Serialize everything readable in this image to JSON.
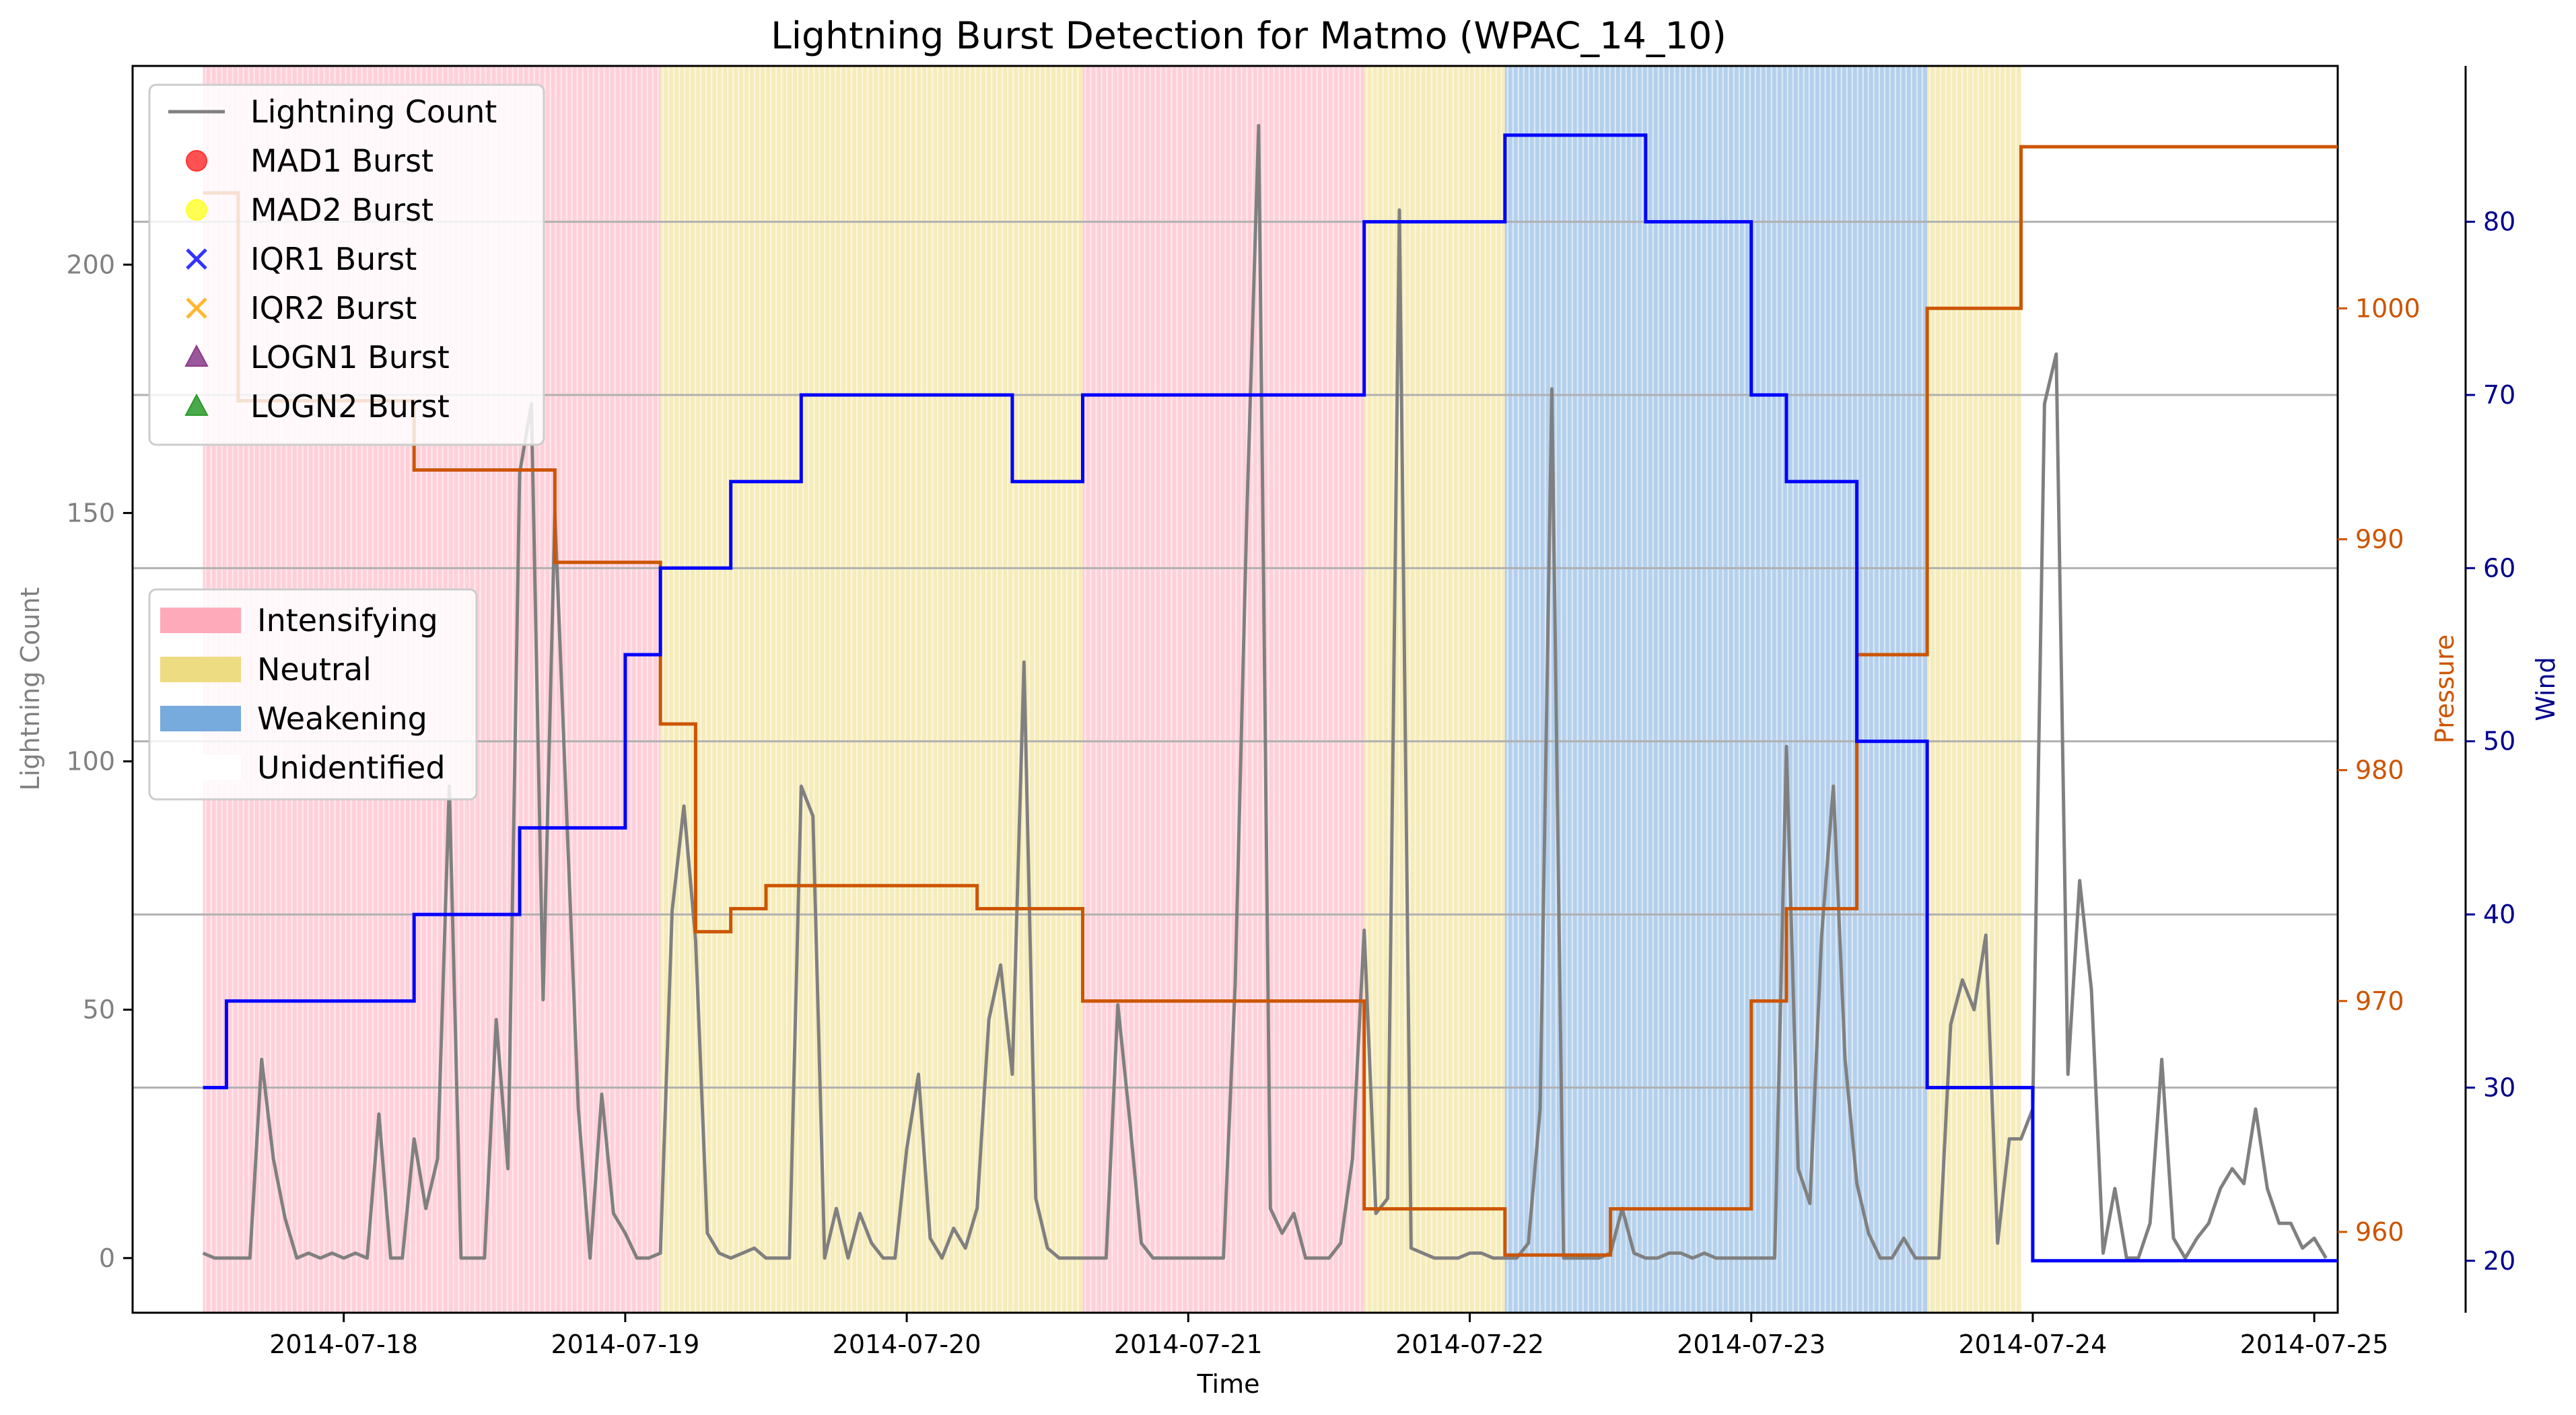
{
  "chart_data": {
    "type": "line",
    "title": "Lightning Burst Detection for Matmo (WPAC_14_10)",
    "xlabel": "Time",
    "ylabel_left": "Lightning Count",
    "ylabel_pressure": "Pressure",
    "ylabel_wind": "Wind",
    "x_range": [
      "2014-07-17 06:00",
      "2014-07-25 02:00"
    ],
    "ylim_count": [
      -11,
      240
    ],
    "ylim_pressure": [
      956.5,
      1010.5
    ],
    "ylim_wind": [
      17,
      89
    ],
    "x_ticks": [
      "2014-07-18",
      "2014-07-19",
      "2014-07-20",
      "2014-07-21",
      "2014-07-22",
      "2014-07-23",
      "2014-07-24",
      "2014-07-25"
    ],
    "y_ticks_count": [
      0,
      50,
      100,
      150,
      200
    ],
    "y_ticks_pressure": [
      960,
      970,
      980,
      990,
      1000
    ],
    "y_ticks_wind": [
      20,
      30,
      40,
      50,
      60,
      70,
      80
    ],
    "grid_lines_wind": [
      30,
      40,
      50,
      60,
      70,
      80
    ],
    "colors": {
      "lightning": "#808080",
      "pressure": "#cc5500",
      "wind": "#0000ff",
      "wind_axis": "#00008b",
      "intensifying": "#ffaabb",
      "neutral": "#eedc82",
      "weakening": "#77aadd"
    },
    "phases": [
      {
        "label": "Intensifying",
        "start": "2014-07-17 12:00",
        "end": "2014-07-19 03:00"
      },
      {
        "label": "Neutral",
        "start": "2014-07-19 03:00",
        "end": "2014-07-20 15:00"
      },
      {
        "label": "Intensifying",
        "start": "2014-07-20 15:00",
        "end": "2014-07-21 15:00"
      },
      {
        "label": "Neutral",
        "start": "2014-07-21 15:00",
        "end": "2014-07-22 03:00"
      },
      {
        "label": "Weakening",
        "start": "2014-07-22 03:00",
        "end": "2014-07-23 15:00"
      },
      {
        "label": "Neutral",
        "start": "2014-07-23 15:00",
        "end": "2014-07-23 23:00"
      }
    ],
    "series": [
      {
        "name": "Lightning Count",
        "points": [
          [
            "2014-07-17 12:00",
            1
          ],
          [
            "2014-07-17 13:00",
            0
          ],
          [
            "2014-07-17 14:00",
            0
          ],
          [
            "2014-07-17 15:00",
            0
          ],
          [
            "2014-07-17 16:00",
            0
          ],
          [
            "2014-07-17 17:00",
            40
          ],
          [
            "2014-07-17 18:00",
            20
          ],
          [
            "2014-07-17 19:00",
            8
          ],
          [
            "2014-07-17 20:00",
            0
          ],
          [
            "2014-07-17 21:00",
            1
          ],
          [
            "2014-07-17 22:00",
            0
          ],
          [
            "2014-07-17 23:00",
            1
          ],
          [
            "2014-07-18 00:00",
            0
          ],
          [
            "2014-07-18 01:00",
            1
          ],
          [
            "2014-07-18 02:00",
            0
          ],
          [
            "2014-07-18 03:00",
            29
          ],
          [
            "2014-07-18 04:00",
            0
          ],
          [
            "2014-07-18 05:00",
            0
          ],
          [
            "2014-07-18 06:00",
            24
          ],
          [
            "2014-07-18 07:00",
            10
          ],
          [
            "2014-07-18 08:00",
            20
          ],
          [
            "2014-07-18 09:00",
            95
          ],
          [
            "2014-07-18 10:00",
            0
          ],
          [
            "2014-07-18 11:00",
            0
          ],
          [
            "2014-07-18 12:00",
            0
          ],
          [
            "2014-07-18 13:00",
            48
          ],
          [
            "2014-07-18 14:00",
            18
          ],
          [
            "2014-07-18 15:00",
            158
          ],
          [
            "2014-07-18 16:00",
            172
          ],
          [
            "2014-07-18 17:00",
            52
          ],
          [
            "2014-07-18 18:00",
            150
          ],
          [
            "2014-07-18 19:00",
            90
          ],
          [
            "2014-07-18 20:00",
            30
          ],
          [
            "2014-07-18 21:00",
            0
          ],
          [
            "2014-07-18 22:00",
            33
          ],
          [
            "2014-07-18 23:00",
            9
          ],
          [
            "2014-07-19 00:00",
            5
          ],
          [
            "2014-07-19 01:00",
            0
          ],
          [
            "2014-07-19 02:00",
            0
          ],
          [
            "2014-07-19 03:00",
            1
          ],
          [
            "2014-07-19 04:00",
            70
          ],
          [
            "2014-07-19 05:00",
            91
          ],
          [
            "2014-07-19 06:00",
            64
          ],
          [
            "2014-07-19 07:00",
            5
          ],
          [
            "2014-07-19 08:00",
            1
          ],
          [
            "2014-07-19 09:00",
            0
          ],
          [
            "2014-07-19 10:00",
            1
          ],
          [
            "2014-07-19 11:00",
            2
          ],
          [
            "2014-07-19 12:00",
            0
          ],
          [
            "2014-07-19 13:00",
            0
          ],
          [
            "2014-07-19 14:00",
            0
          ],
          [
            "2014-07-19 15:00",
            95
          ],
          [
            "2014-07-19 16:00",
            89
          ],
          [
            "2014-07-19 17:00",
            0
          ],
          [
            "2014-07-19 18:00",
            10
          ],
          [
            "2014-07-19 19:00",
            0
          ],
          [
            "2014-07-19 20:00",
            9
          ],
          [
            "2014-07-19 21:00",
            3
          ],
          [
            "2014-07-19 22:00",
            0
          ],
          [
            "2014-07-19 23:00",
            0
          ],
          [
            "2014-07-20 00:00",
            22
          ],
          [
            "2014-07-20 01:00",
            37
          ],
          [
            "2014-07-20 02:00",
            4
          ],
          [
            "2014-07-20 03:00",
            0
          ],
          [
            "2014-07-20 04:00",
            6
          ],
          [
            "2014-07-20 05:00",
            2
          ],
          [
            "2014-07-20 06:00",
            10
          ],
          [
            "2014-07-20 07:00",
            48
          ],
          [
            "2014-07-20 08:00",
            59
          ],
          [
            "2014-07-20 09:00",
            37
          ],
          [
            "2014-07-20 10:00",
            120
          ],
          [
            "2014-07-20 11:00",
            12
          ],
          [
            "2014-07-20 12:00",
            2
          ],
          [
            "2014-07-20 13:00",
            0
          ],
          [
            "2014-07-20 14:00",
            0
          ],
          [
            "2014-07-20 15:00",
            0
          ],
          [
            "2014-07-20 16:00",
            0
          ],
          [
            "2014-07-20 17:00",
            0
          ],
          [
            "2014-07-20 18:00",
            51
          ],
          [
            "2014-07-20 19:00",
            28
          ],
          [
            "2014-07-20 20:00",
            3
          ],
          [
            "2014-07-20 21:00",
            0
          ],
          [
            "2014-07-20 22:00",
            0
          ],
          [
            "2014-07-20 23:00",
            0
          ],
          [
            "2014-07-21 00:00",
            0
          ],
          [
            "2014-07-21 01:00",
            0
          ],
          [
            "2014-07-21 02:00",
            0
          ],
          [
            "2014-07-21 03:00",
            0
          ],
          [
            "2014-07-21 04:00",
            55
          ],
          [
            "2014-07-21 05:00",
            150
          ],
          [
            "2014-07-21 06:00",
            228
          ],
          [
            "2014-07-21 07:00",
            10
          ],
          [
            "2014-07-21 08:00",
            5
          ],
          [
            "2014-07-21 09:00",
            9
          ],
          [
            "2014-07-21 10:00",
            0
          ],
          [
            "2014-07-21 11:00",
            0
          ],
          [
            "2014-07-21 12:00",
            0
          ],
          [
            "2014-07-21 13:00",
            3
          ],
          [
            "2014-07-21 14:00",
            20
          ],
          [
            "2014-07-21 15:00",
            66
          ],
          [
            "2014-07-21 16:00",
            9
          ],
          [
            "2014-07-21 17:00",
            12
          ],
          [
            "2014-07-21 18:00",
            211
          ],
          [
            "2014-07-21 19:00",
            2
          ],
          [
            "2014-07-21 20:00",
            1
          ],
          [
            "2014-07-21 21:00",
            0
          ],
          [
            "2014-07-21 22:00",
            0
          ],
          [
            "2014-07-21 23:00",
            0
          ],
          [
            "2014-07-22 00:00",
            1
          ],
          [
            "2014-07-22 01:00",
            1
          ],
          [
            "2014-07-22 02:00",
            0
          ],
          [
            "2014-07-22 03:00",
            0
          ],
          [
            "2014-07-22 04:00",
            0
          ],
          [
            "2014-07-22 05:00",
            3
          ],
          [
            "2014-07-22 06:00",
            30
          ],
          [
            "2014-07-22 07:00",
            175
          ],
          [
            "2014-07-22 08:00",
            0
          ],
          [
            "2014-07-22 09:00",
            0
          ],
          [
            "2014-07-22 10:00",
            0
          ],
          [
            "2014-07-22 11:00",
            0
          ],
          [
            "2014-07-22 12:00",
            1
          ],
          [
            "2014-07-22 13:00",
            10
          ],
          [
            "2014-07-22 14:00",
            1
          ],
          [
            "2014-07-22 15:00",
            0
          ],
          [
            "2014-07-22 16:00",
            0
          ],
          [
            "2014-07-22 17:00",
            1
          ],
          [
            "2014-07-22 18:00",
            1
          ],
          [
            "2014-07-22 19:00",
            0
          ],
          [
            "2014-07-22 20:00",
            1
          ],
          [
            "2014-07-22 21:00",
            0
          ],
          [
            "2014-07-22 22:00",
            0
          ],
          [
            "2014-07-22 23:00",
            0
          ],
          [
            "2014-07-23 00:00",
            0
          ],
          [
            "2014-07-23 01:00",
            0
          ],
          [
            "2014-07-23 02:00",
            0
          ],
          [
            "2014-07-23 03:00",
            103
          ],
          [
            "2014-07-23 04:00",
            18
          ],
          [
            "2014-07-23 05:00",
            11
          ],
          [
            "2014-07-23 06:00",
            65
          ],
          [
            "2014-07-23 07:00",
            95
          ],
          [
            "2014-07-23 08:00",
            40
          ],
          [
            "2014-07-23 09:00",
            15
          ],
          [
            "2014-07-23 10:00",
            5
          ],
          [
            "2014-07-23 11:00",
            0
          ],
          [
            "2014-07-23 12:00",
            0
          ],
          [
            "2014-07-23 13:00",
            4
          ],
          [
            "2014-07-23 14:00",
            0
          ],
          [
            "2014-07-23 15:00",
            0
          ],
          [
            "2014-07-23 16:00",
            0
          ],
          [
            "2014-07-23 17:00",
            47
          ],
          [
            "2014-07-23 18:00",
            56
          ],
          [
            "2014-07-23 19:00",
            50
          ],
          [
            "2014-07-23 20:00",
            65
          ],
          [
            "2014-07-23 21:00",
            3
          ],
          [
            "2014-07-23 22:00",
            24
          ],
          [
            "2014-07-23 23:00",
            24
          ],
          [
            "2014-07-24 00:00",
            30
          ],
          [
            "2014-07-24 01:00",
            172
          ],
          [
            "2014-07-24 02:00",
            182
          ],
          [
            "2014-07-24 03:00",
            37
          ],
          [
            "2014-07-24 04:00",
            76
          ],
          [
            "2014-07-24 05:00",
            54
          ],
          [
            "2014-07-24 06:00",
            1
          ],
          [
            "2014-07-24 07:00",
            14
          ],
          [
            "2014-07-24 08:00",
            0
          ],
          [
            "2014-07-24 09:00",
            0
          ],
          [
            "2014-07-24 10:00",
            7
          ],
          [
            "2014-07-24 11:00",
            40
          ],
          [
            "2014-07-24 12:00",
            4
          ],
          [
            "2014-07-24 13:00",
            0
          ],
          [
            "2014-07-24 14:00",
            4
          ],
          [
            "2014-07-24 15:00",
            7
          ],
          [
            "2014-07-24 16:00",
            14
          ],
          [
            "2014-07-24 17:00",
            18
          ],
          [
            "2014-07-24 18:00",
            15
          ],
          [
            "2014-07-24 19:00",
            30
          ],
          [
            "2014-07-24 20:00",
            14
          ],
          [
            "2014-07-24 21:00",
            7
          ],
          [
            "2014-07-24 22:00",
            7
          ],
          [
            "2014-07-24 23:00",
            2
          ],
          [
            "2014-07-25 00:00",
            4
          ],
          [
            "2014-07-25 01:00",
            0
          ]
        ]
      },
      {
        "name": "Pressure",
        "axis": "pressure",
        "steps": [
          [
            "2014-07-17 12:00",
            1005
          ],
          [
            "2014-07-17 15:00",
            996
          ],
          [
            "2014-07-18 06:00",
            993
          ],
          [
            "2014-07-18 18:00",
            989
          ],
          [
            "2014-07-19 03:00",
            982
          ],
          [
            "2014-07-19 06:00",
            973
          ],
          [
            "2014-07-19 09:00",
            974
          ],
          [
            "2014-07-19 12:00",
            975
          ],
          [
            "2014-07-20 06:00",
            974
          ],
          [
            "2014-07-20 15:00",
            970
          ],
          [
            "2014-07-21 15:00",
            961
          ],
          [
            "2014-07-22 03:00",
            959
          ],
          [
            "2014-07-22 12:00",
            961
          ],
          [
            "2014-07-23 00:00",
            970
          ],
          [
            "2014-07-23 03:00",
            974
          ],
          [
            "2014-07-23 09:00",
            985
          ],
          [
            "2014-07-23 15:00",
            1000
          ],
          [
            "2014-07-23 23:00",
            1007
          ],
          [
            "2014-07-25 02:00",
            1007
          ]
        ]
      },
      {
        "name": "Wind",
        "axis": "wind",
        "steps": [
          [
            "2014-07-17 12:00",
            30
          ],
          [
            "2014-07-17 14:00",
            35
          ],
          [
            "2014-07-18 06:00",
            40
          ],
          [
            "2014-07-18 15:00",
            45
          ],
          [
            "2014-07-19 00:00",
            55
          ],
          [
            "2014-07-19 03:00",
            60
          ],
          [
            "2014-07-19 09:00",
            65
          ],
          [
            "2014-07-19 15:00",
            70
          ],
          [
            "2014-07-20 09:00",
            65
          ],
          [
            "2014-07-20 15:00",
            70
          ],
          [
            "2014-07-21 15:00",
            80
          ],
          [
            "2014-07-22 03:00",
            85
          ],
          [
            "2014-07-22 15:00",
            80
          ],
          [
            "2014-07-23 00:00",
            70
          ],
          [
            "2014-07-23 03:00",
            65
          ],
          [
            "2014-07-23 09:00",
            50
          ],
          [
            "2014-07-23 15:00",
            30
          ],
          [
            "2014-07-24 00:00",
            20
          ],
          [
            "2014-07-25 02:00",
            20
          ]
        ]
      }
    ],
    "legend": {
      "placement": "upper-left",
      "markers": [
        {
          "label": "Lightning Count",
          "symbol": "line",
          "color": "#808080"
        },
        {
          "label": "MAD1 Burst",
          "symbol": "circle",
          "color": "#ff3333"
        },
        {
          "label": "MAD2 Burst",
          "symbol": "circle",
          "color": "#ffff33"
        },
        {
          "label": "IQR1 Burst",
          "symbol": "x",
          "color": "#3333ff"
        },
        {
          "label": "IQR2 Burst",
          "symbol": "x",
          "color": "#ffb733"
        },
        {
          "label": "LOGN1 Burst",
          "symbol": "triangle",
          "color": "#8a3a8a"
        },
        {
          "label": "LOGN2 Burst",
          "symbol": "triangle",
          "color": "#2a9a2a"
        }
      ],
      "phases": [
        {
          "label": "Intensifying",
          "color": "#ffaabb"
        },
        {
          "label": "Neutral",
          "color": "#eedc82"
        },
        {
          "label": "Weakening",
          "color": "#77aadd"
        },
        {
          "label": "Unidentified",
          "color": "#ffffff"
        }
      ]
    }
  }
}
